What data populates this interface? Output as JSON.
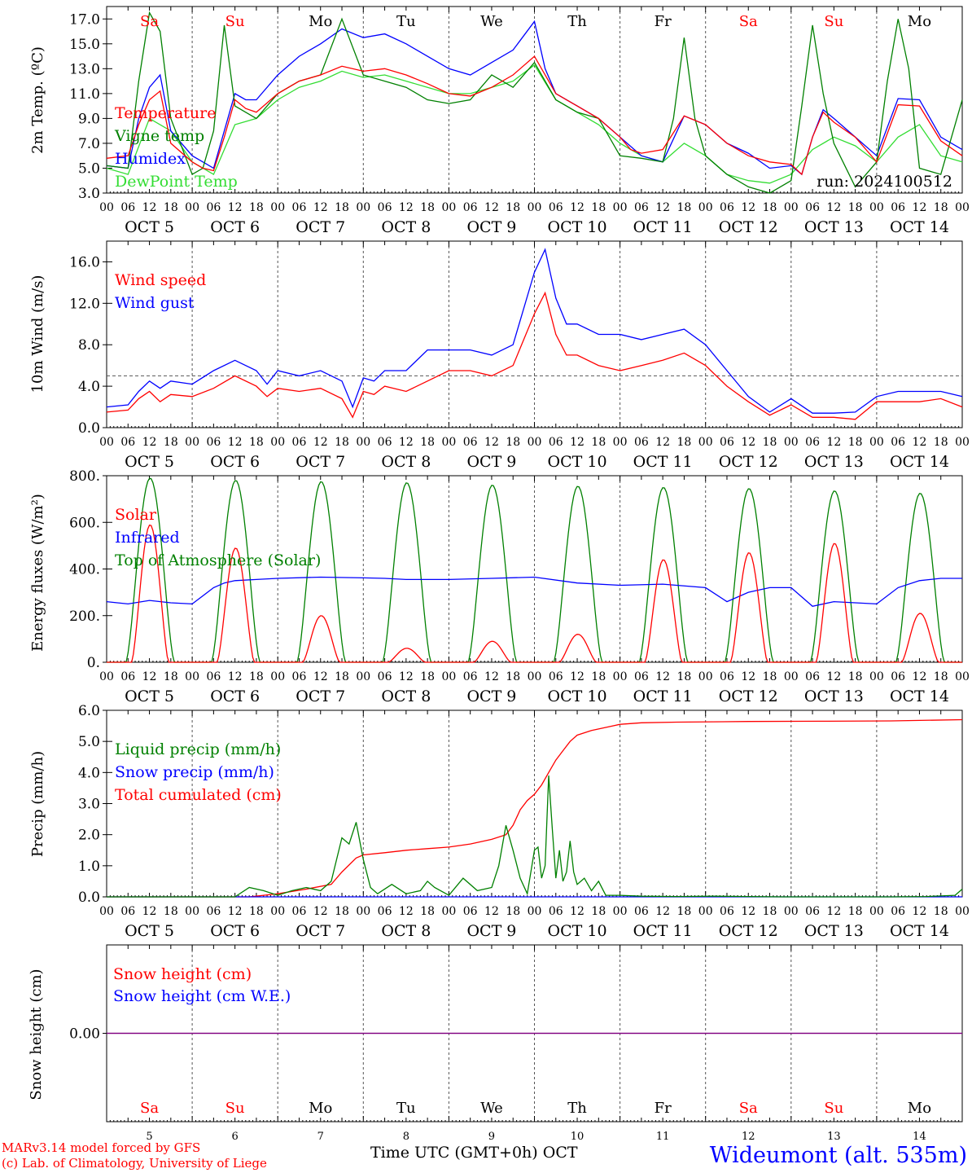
{
  "days": [
    "5",
    "6",
    "7",
    "8",
    "9",
    "10",
    "11",
    "12",
    "13",
    "14"
  ],
  "weekdays": [
    "Sa",
    "Su",
    "Mo",
    "Tu",
    "We",
    "Th",
    "Fr",
    "Sa",
    "Su",
    "Mo"
  ],
  "weekend_flags": [
    true,
    true,
    false,
    false,
    false,
    false,
    false,
    true,
    true,
    false
  ],
  "hour_ticks": [
    "00",
    "06",
    "12",
    "18"
  ],
  "end_tick": "00",
  "month": "OCT",
  "colors": {
    "red": "#ff0000",
    "green": "#008000",
    "blue": "#0000ff",
    "lightgreen": "#33dd33",
    "purple": "#800080",
    "grid": "#555555"
  },
  "chart_data": [
    {
      "type": "line",
      "ylabel": "2m Temp. (ºC)",
      "ylim": [
        3,
        18
      ],
      "yticks": [
        "3.0",
        "5.0",
        "7.0",
        "9.0",
        "11.0",
        "13.0",
        "15.0",
        "17.0"
      ],
      "ytick_values": [
        3,
        5,
        7,
        9,
        11,
        13,
        15,
        17
      ],
      "x_unit": "hours since Oct 5 00 UTC",
      "annotation": "run: 2024100512",
      "series": [
        {
          "name": "Temperature",
          "color": "#ff0000",
          "x": [
            0,
            6,
            9,
            12,
            15,
            18,
            24,
            27,
            30,
            33,
            36,
            39,
            42,
            48,
            54,
            60,
            66,
            72,
            78,
            84,
            90,
            96,
            102,
            108,
            114,
            120,
            126,
            132,
            138,
            144,
            147,
            150,
            156,
            162,
            168,
            174,
            180,
            186,
            192,
            195,
            198,
            201,
            204,
            210,
            216,
            222,
            228,
            234,
            240
          ],
          "y": [
            5.8,
            6.0,
            8.5,
            10.5,
            11.2,
            7.0,
            5.5,
            5.0,
            4.8,
            7.5,
            10.5,
            9.8,
            9.5,
            11.0,
            12.0,
            12.5,
            13.2,
            12.8,
            13.0,
            12.5,
            11.8,
            11.0,
            10.8,
            11.5,
            12.5,
            14.0,
            11.0,
            10.0,
            9.0,
            7.5,
            6.5,
            6.2,
            6.5,
            9.2,
            8.5,
            7.0,
            6.0,
            5.5,
            5.3,
            4.5,
            7.5,
            9.5,
            8.7,
            7.5,
            5.5,
            10.1,
            10.0,
            7.2,
            6.0
          ]
        },
        {
          "name": "Vigne temp",
          "color": "#008000",
          "x": [
            0,
            6,
            9,
            12,
            15,
            18,
            24,
            27,
            30,
            33,
            36,
            39,
            42,
            48,
            54,
            60,
            66,
            72,
            78,
            84,
            90,
            96,
            102,
            108,
            114,
            120,
            126,
            132,
            138,
            144,
            150,
            156,
            159,
            162,
            165,
            168,
            174,
            180,
            186,
            192,
            195,
            198,
            201,
            204,
            210,
            216,
            219,
            222,
            225,
            228,
            234,
            240
          ],
          "y": [
            5.2,
            5.0,
            12.0,
            17.5,
            16.0,
            9.0,
            4.5,
            5.0,
            8.0,
            16.5,
            10.0,
            9.5,
            9.0,
            11.0,
            12.0,
            12.5,
            17.0,
            12.5,
            12.0,
            11.5,
            10.5,
            10.2,
            10.5,
            12.5,
            11.5,
            13.5,
            10.5,
            9.5,
            9.0,
            6.0,
            5.8,
            5.5,
            9.0,
            15.5,
            9.0,
            6.0,
            4.5,
            3.5,
            2.8,
            4.0,
            10.0,
            16.5,
            11.0,
            7.0,
            3.5,
            5.5,
            12.0,
            17.0,
            13.0,
            5.0,
            4.5,
            10.5
          ]
        },
        {
          "name": "Humidex",
          "color": "#0000ff",
          "x": [
            0,
            6,
            9,
            12,
            15,
            18,
            24,
            27,
            30,
            33,
            36,
            39,
            42,
            48,
            54,
            60,
            66,
            72,
            78,
            84,
            90,
            96,
            102,
            108,
            114,
            120,
            123,
            126,
            132,
            138,
            144,
            150,
            156,
            162,
            168,
            174,
            180,
            186,
            192,
            195,
            198,
            201,
            204,
            210,
            216,
            222,
            228,
            234,
            240
          ],
          "y": [
            5.2,
            5.0,
            9.0,
            11.5,
            12.5,
            8.0,
            6.0,
            5.5,
            5.0,
            8.0,
            11.0,
            10.5,
            10.5,
            12.5,
            14.0,
            15.0,
            16.2,
            15.5,
            15.8,
            15.0,
            14.0,
            13.0,
            12.5,
            13.5,
            14.5,
            16.8,
            13.0,
            11.0,
            10.0,
            9.0,
            7.5,
            6.0,
            5.5,
            9.2,
            8.5,
            7.0,
            6.2,
            5.0,
            5.2,
            4.5,
            7.5,
            9.7,
            9.0,
            7.5,
            6.0,
            10.6,
            10.5,
            7.5,
            6.5
          ]
        },
        {
          "name": "DewPoint Temp",
          "color": "#33dd33",
          "x": [
            0,
            6,
            12,
            18,
            24,
            30,
            33,
            36,
            42,
            48,
            54,
            60,
            66,
            72,
            78,
            84,
            90,
            96,
            102,
            108,
            114,
            120,
            126,
            132,
            138,
            144,
            150,
            156,
            162,
            168,
            174,
            180,
            186,
            192,
            198,
            204,
            210,
            216,
            222,
            228,
            234,
            240
          ],
          "y": [
            5.0,
            4.5,
            9.0,
            8.0,
            5.5,
            4.5,
            6.5,
            8.5,
            9.0,
            10.5,
            11.5,
            12.0,
            12.8,
            12.3,
            12.5,
            12.0,
            11.5,
            11.0,
            11.0,
            11.5,
            12.0,
            13.3,
            10.5,
            9.5,
            8.5,
            7.0,
            6.0,
            5.5,
            7.0,
            6.0,
            4.5,
            4.0,
            3.8,
            4.5,
            6.5,
            7.5,
            6.8,
            5.5,
            7.5,
            8.5,
            6.0,
            5.5
          ]
        }
      ]
    },
    {
      "type": "line",
      "ylabel": "10m Wind (m/s)",
      "ylim": [
        0,
        18
      ],
      "yticks": [
        "0.0",
        "4.0",
        "8.0",
        "12.0",
        "16.0"
      ],
      "ytick_values": [
        0,
        4,
        8,
        12,
        16
      ],
      "reference_line": 5.0,
      "series": [
        {
          "name": "Wind speed",
          "color": "#ff0000",
          "x": [
            0,
            6,
            9,
            12,
            15,
            18,
            24,
            30,
            36,
            42,
            45,
            48,
            54,
            60,
            66,
            69,
            72,
            75,
            78,
            84,
            90,
            96,
            102,
            108,
            114,
            120,
            123,
            126,
            129,
            132,
            138,
            144,
            150,
            156,
            162,
            168,
            174,
            180,
            186,
            192,
            198,
            204,
            210,
            216,
            222,
            228,
            234,
            240
          ],
          "y": [
            1.5,
            1.7,
            2.8,
            3.5,
            2.5,
            3.2,
            3.0,
            3.8,
            5.0,
            4.0,
            3.0,
            3.8,
            3.5,
            3.8,
            2.8,
            1.0,
            3.5,
            3.2,
            4.0,
            3.5,
            4.5,
            5.5,
            5.5,
            5.0,
            6.0,
            11.0,
            13.0,
            9.0,
            7.0,
            7.0,
            6.0,
            5.5,
            6.0,
            6.5,
            7.2,
            6.0,
            4.0,
            2.5,
            1.2,
            2.2,
            1.0,
            1.0,
            0.8,
            2.5,
            2.5,
            2.5,
            2.8,
            2.0
          ]
        },
        {
          "name": "Wind gust",
          "color": "#0000ff",
          "x": [
            0,
            6,
            9,
            12,
            15,
            18,
            24,
            30,
            36,
            42,
            45,
            48,
            54,
            60,
            66,
            69,
            72,
            75,
            78,
            84,
            90,
            96,
            102,
            108,
            114,
            120,
            123,
            126,
            129,
            132,
            138,
            144,
            150,
            156,
            162,
            168,
            174,
            180,
            186,
            192,
            198,
            204,
            210,
            216,
            222,
            228,
            234,
            240
          ],
          "y": [
            2.0,
            2.2,
            3.5,
            4.5,
            3.8,
            4.5,
            4.2,
            5.5,
            6.5,
            5.5,
            4.2,
            5.5,
            5.0,
            5.5,
            4.5,
            2.0,
            4.8,
            4.5,
            5.5,
            5.5,
            7.5,
            7.5,
            7.5,
            7.0,
            8.0,
            15.0,
            17.2,
            12.5,
            10.0,
            10.0,
            9.0,
            9.0,
            8.5,
            9.0,
            9.5,
            8.0,
            5.5,
            3.0,
            1.5,
            2.8,
            1.4,
            1.4,
            1.5,
            3.0,
            3.5,
            3.5,
            3.5,
            3.0
          ]
        }
      ]
    },
    {
      "type": "line",
      "ylabel": "Energy fluxes (W/m²)",
      "ylim": [
        0,
        800
      ],
      "yticks": [
        "0.",
        "200.",
        "400.",
        "600.",
        "800."
      ],
      "ytick_values": [
        0,
        200,
        400,
        600,
        800
      ],
      "series": [
        {
          "name": "Solar",
          "color": "#ff0000",
          "solar_peaks": [
            590,
            490,
            200,
            60,
            90,
            120,
            440,
            470,
            510,
            210
          ]
        },
        {
          "name": "Infrared",
          "color": "#0000ff",
          "x": [
            0,
            6,
            12,
            18,
            24,
            30,
            33,
            36,
            42,
            48,
            60,
            72,
            78,
            84,
            96,
            108,
            120,
            132,
            144,
            156,
            168,
            174,
            180,
            186,
            192,
            198,
            204,
            210,
            216,
            222,
            228,
            234,
            240
          ],
          "y": [
            260,
            250,
            265,
            255,
            250,
            320,
            340,
            350,
            355,
            360,
            365,
            362,
            360,
            355,
            355,
            360,
            365,
            340,
            330,
            335,
            320,
            260,
            300,
            320,
            320,
            240,
            260,
            255,
            250,
            320,
            350,
            360,
            360
          ]
        },
        {
          "name": "Top of Atmosphere (Solar)",
          "color": "#008000",
          "toa_peaks": [
            790,
            780,
            775,
            770,
            760,
            755,
            750,
            745,
            735,
            725
          ]
        }
      ]
    },
    {
      "type": "line",
      "ylabel": "Precip (mm/h)",
      "ylim": [
        0,
        6
      ],
      "yticks": [
        "0.0",
        "1.0",
        "2.0",
        "3.0",
        "4.0",
        "5.0",
        "6.0"
      ],
      "ytick_values": [
        0,
        1,
        2,
        3,
        4,
        5,
        6
      ],
      "series": [
        {
          "name": "Liquid precip (mm/h)",
          "color": "#008000",
          "x": [
            0,
            36,
            40,
            44,
            48,
            52,
            56,
            60,
            63,
            66,
            68,
            70,
            72,
            74,
            76,
            80,
            84,
            88,
            90,
            92,
            96,
            100,
            104,
            108,
            110,
            112,
            114,
            116,
            118,
            120,
            121,
            122,
            123,
            124,
            125,
            126,
            127,
            128,
            129,
            130,
            131,
            132,
            134,
            136,
            138,
            140,
            144,
            150,
            160,
            170,
            180,
            190,
            200,
            210,
            220,
            230,
            238,
            240
          ],
          "y": [
            0,
            0,
            0.3,
            0.2,
            0.05,
            0.2,
            0.3,
            0.2,
            0.5,
            1.9,
            1.7,
            2.4,
            1.2,
            0.3,
            0.1,
            0.4,
            0.1,
            0.2,
            0.5,
            0.3,
            0.05,
            0.6,
            0.2,
            0.3,
            1.0,
            2.3,
            1.5,
            0.6,
            0.1,
            1.5,
            1.6,
            0.6,
            1.0,
            3.9,
            2.2,
            0.6,
            1.5,
            0.5,
            0.8,
            1.8,
            0.8,
            0.4,
            0.6,
            0.2,
            0.5,
            0.05,
            0.05,
            0.02,
            0.01,
            0.02,
            0.01,
            0,
            0,
            0,
            0,
            0.01,
            0.05,
            0.25
          ]
        },
        {
          "name": "Snow precip (mm/h)",
          "color": "#0000ff",
          "x": [
            0,
            240
          ],
          "y": [
            0,
            0
          ]
        },
        {
          "name": "Total cumulated (cm)",
          "color": "#ff0000",
          "x": [
            0,
            40,
            44,
            48,
            56,
            63,
            66,
            70,
            72,
            78,
            84,
            90,
            96,
            102,
            108,
            112,
            114,
            116,
            118,
            120,
            122,
            124,
            126,
            128,
            130,
            132,
            136,
            140,
            144,
            150,
            160,
            170,
            180,
            200,
            220,
            240
          ],
          "y": [
            0,
            0,
            0.05,
            0.1,
            0.25,
            0.4,
            0.8,
            1.25,
            1.35,
            1.42,
            1.5,
            1.55,
            1.6,
            1.7,
            1.85,
            2.0,
            2.3,
            2.8,
            3.1,
            3.3,
            3.6,
            4.0,
            4.4,
            4.7,
            5.0,
            5.2,
            5.35,
            5.45,
            5.55,
            5.6,
            5.62,
            5.63,
            5.64,
            5.65,
            5.66,
            5.7
          ]
        }
      ]
    },
    {
      "type": "line",
      "ylabel": "Snow height (cm)",
      "ylim": [
        -1,
        1
      ],
      "yticks": [
        "0.00"
      ],
      "ytick_values": [
        0
      ],
      "series": [
        {
          "name": "Snow height (cm)",
          "color": "#ff0000",
          "x": [
            0,
            240
          ],
          "y": [
            0,
            0
          ]
        },
        {
          "name": "Snow height (cm W.E.)",
          "color": "#0000ff",
          "x": [
            0,
            240
          ],
          "y": [
            0,
            0
          ]
        }
      ]
    }
  ],
  "footer": {
    "xlabel": "Time UTC (GMT+0h)",
    "month": "OCT",
    "credit1": "MARv3.14 model forced by GFS",
    "credit2": "(c) Lab. of Climatology, University of Liege",
    "station": "Wideumont (alt. 535m)"
  }
}
